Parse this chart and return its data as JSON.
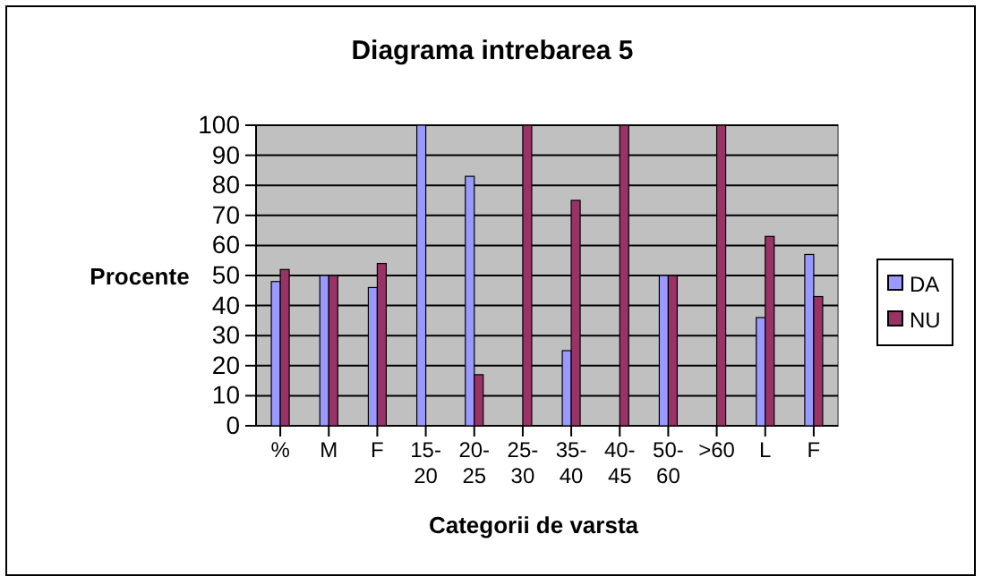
{
  "chart_data": {
    "type": "bar",
    "title": "Diagrama intrebarea 5",
    "xlabel": "Categorii de varsta",
    "ylabel": "Procente",
    "categories": [
      "%",
      "M",
      "F",
      "15-20",
      "20-25",
      "25-30",
      "35-40",
      "40-45",
      "50-60",
      ">60",
      "L",
      "F"
    ],
    "series": [
      {
        "name": "DA",
        "color": "#9999ff",
        "values": [
          48,
          50,
          46,
          100,
          83,
          0,
          25,
          0,
          50,
          0,
          36,
          57
        ]
      },
      {
        "name": "NU",
        "color": "#993366",
        "values": [
          52,
          50,
          54,
          0,
          17,
          100,
          75,
          100,
          50,
          100,
          63,
          43
        ]
      }
    ],
    "ylim": [
      0,
      100
    ],
    "yticks": [
      0,
      10,
      20,
      30,
      40,
      50,
      60,
      70,
      80,
      90,
      100
    ],
    "grid": "y",
    "legend": "right"
  }
}
